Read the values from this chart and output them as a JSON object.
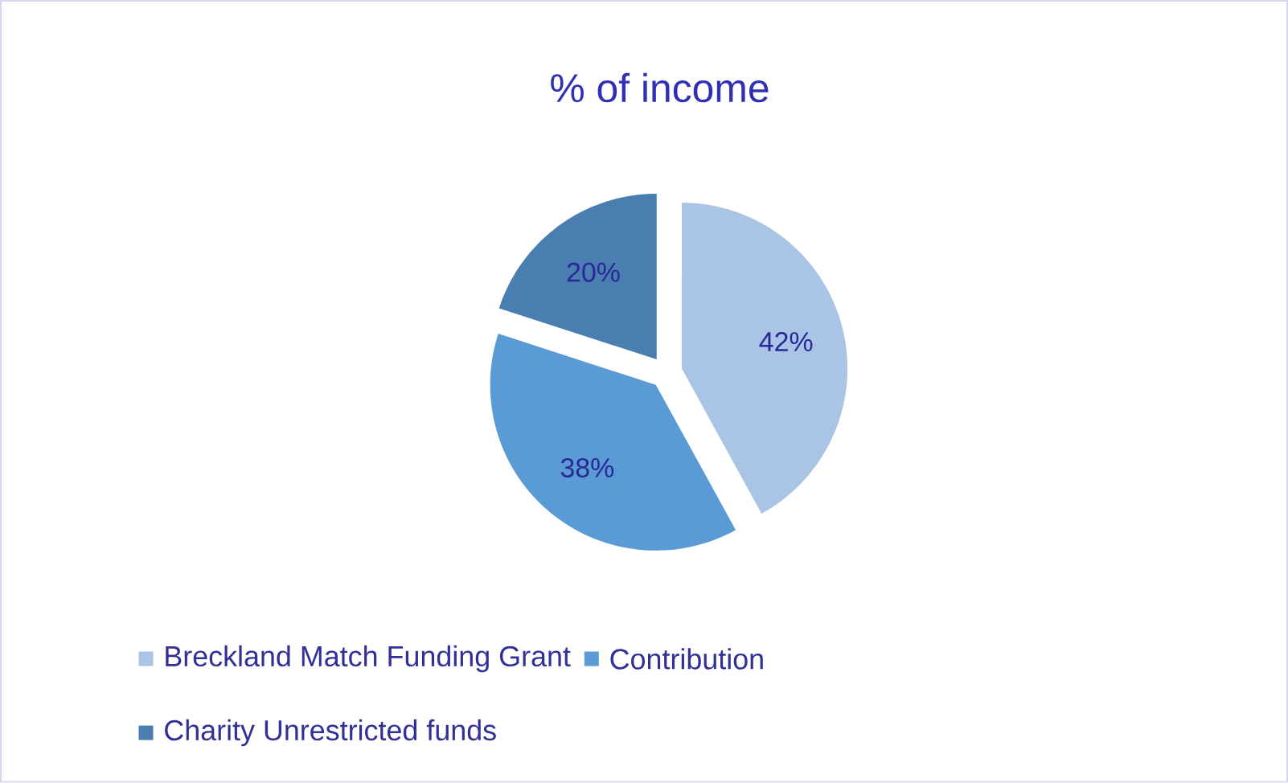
{
  "chart_data": {
    "type": "pie",
    "title": "%  of income",
    "categories": [
      "Breckland Match Funding Grant",
      "Contribution",
      "Charity Unrestricted funds"
    ],
    "values": [
      42,
      38,
      20
    ],
    "value_labels": [
      "42%",
      "38%",
      "20%"
    ],
    "colors": [
      "#a9c4e5",
      "#5b9bd5",
      "#4a7eb0"
    ],
    "legend": "bottom"
  }
}
